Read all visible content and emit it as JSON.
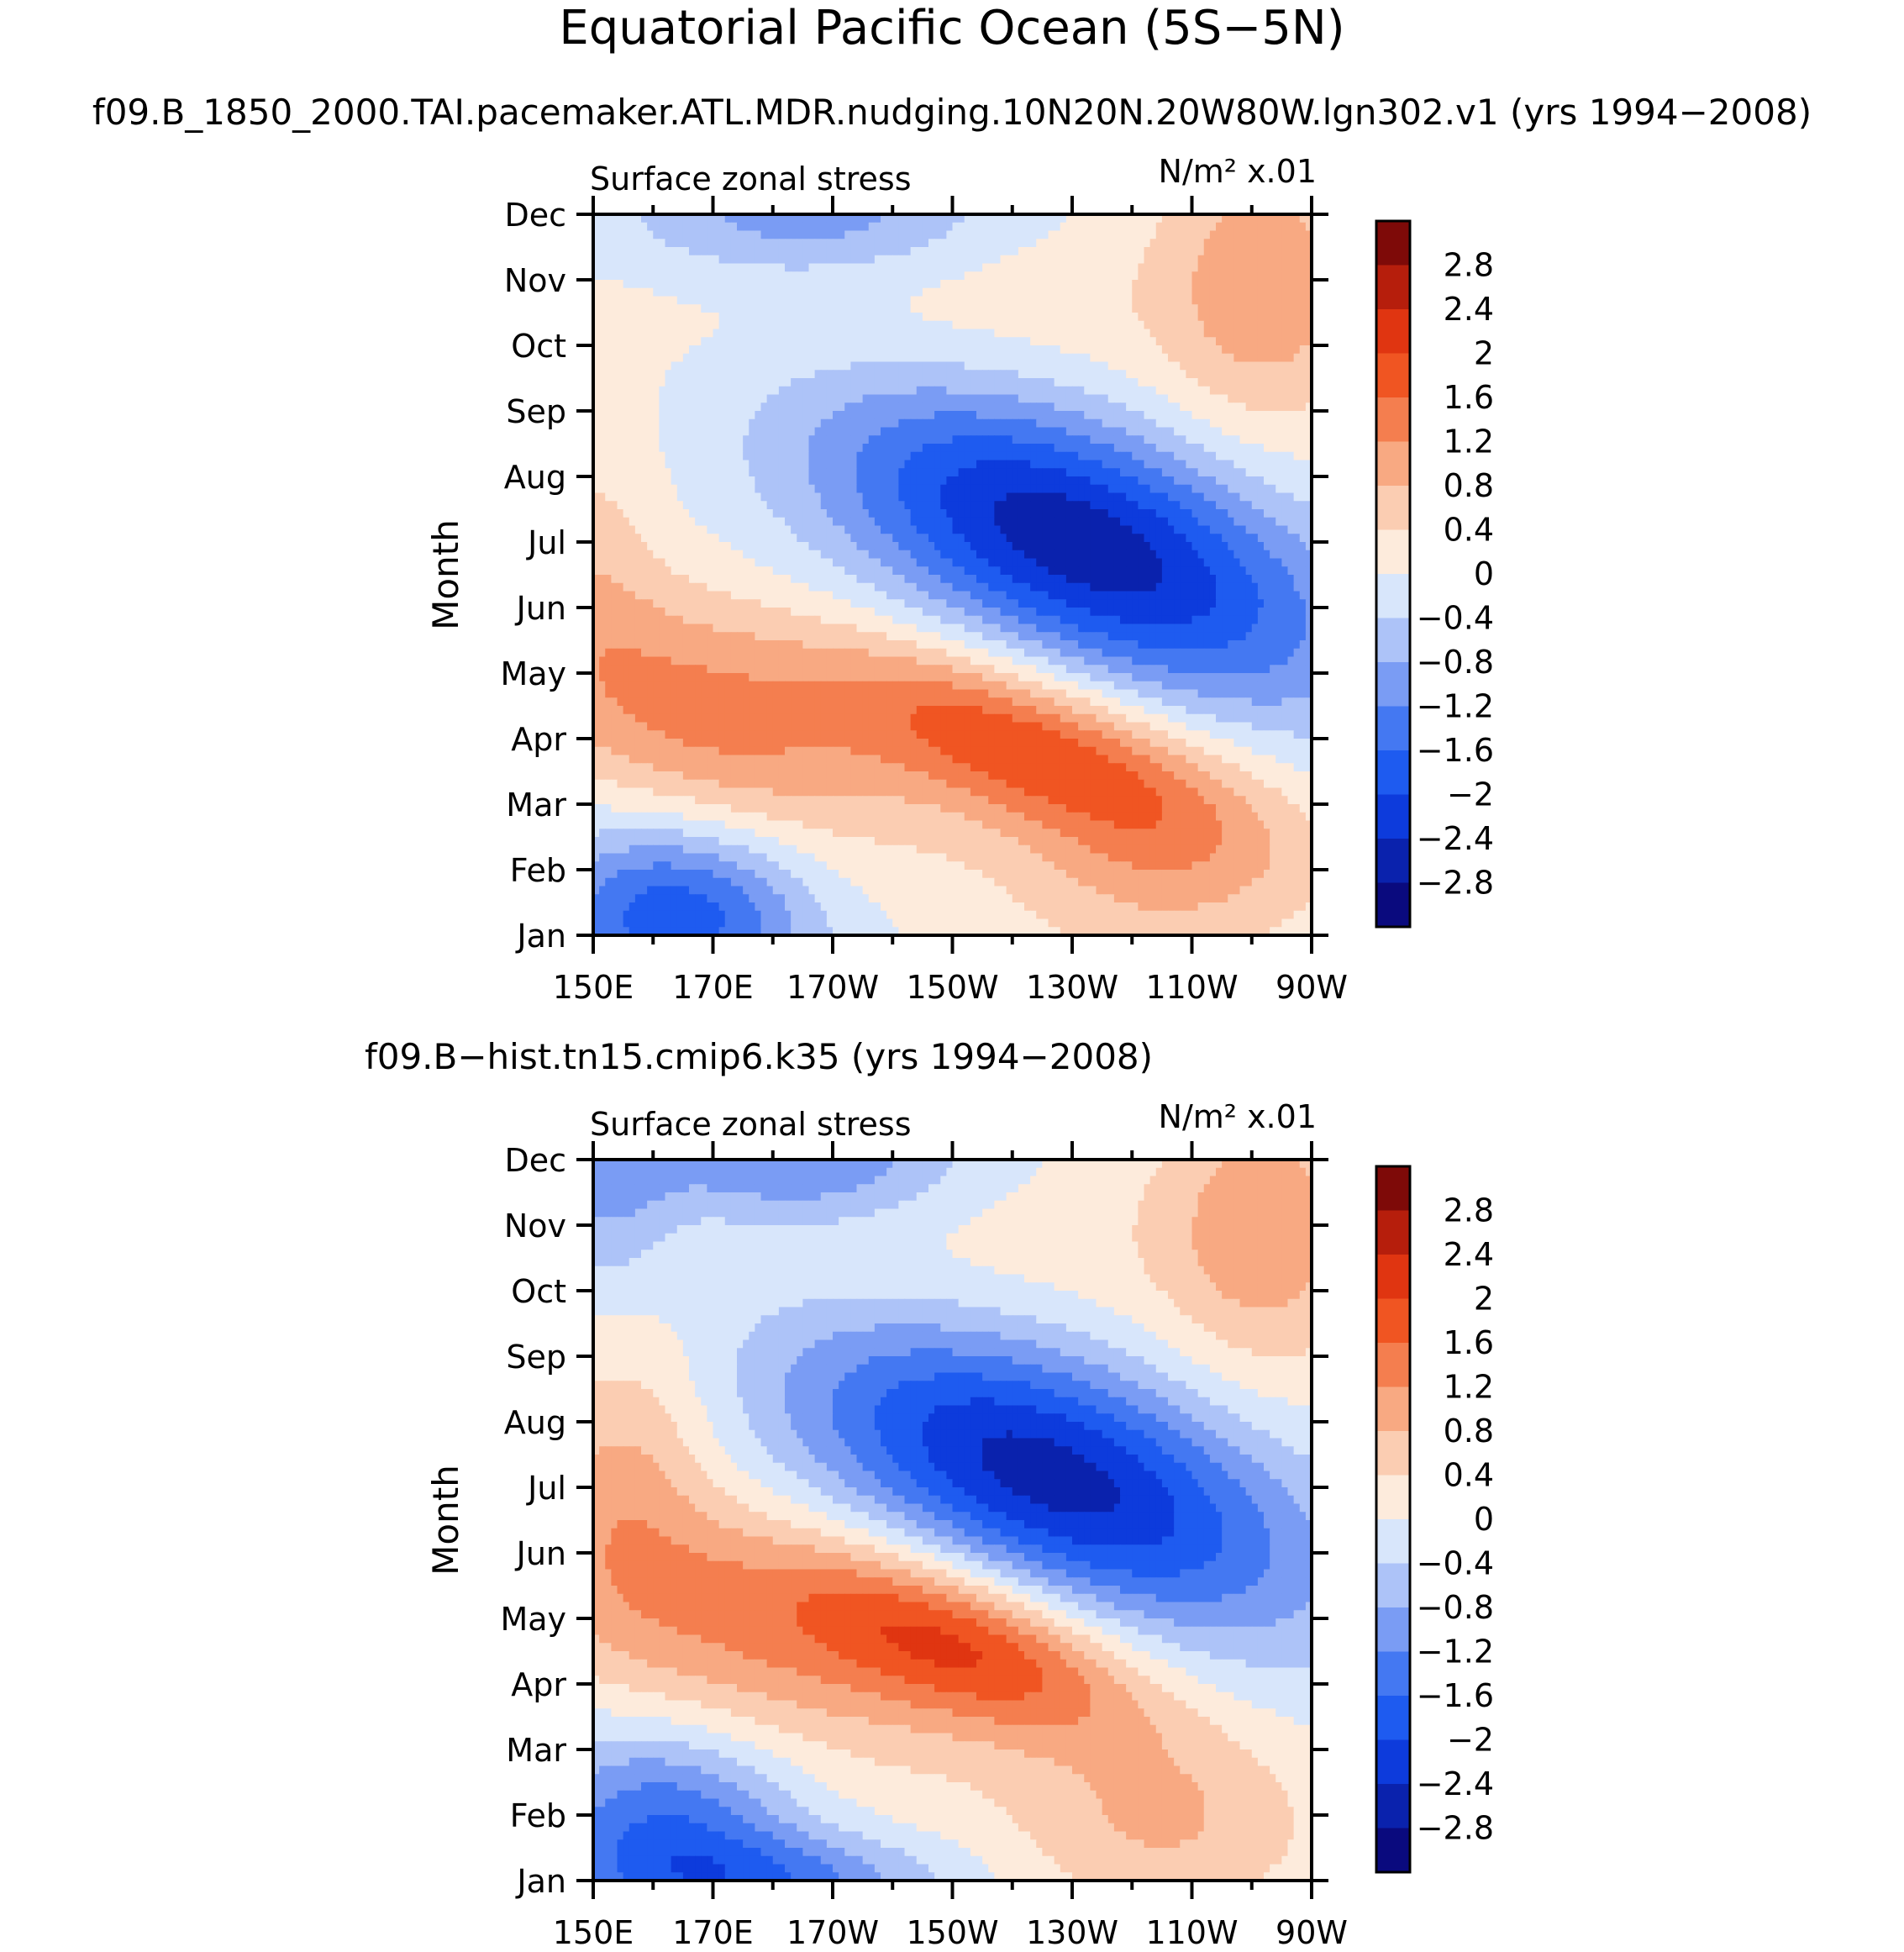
{
  "figure": {
    "title": "Equatorial Pacific Ocean (5S−5N)"
  },
  "colorbar": {
    "colors": [
      "#0a0a7e",
      "#0a22ad",
      "#0d3bdc",
      "#1e5bf0",
      "#4478f2",
      "#7a9cf4",
      "#adc3f8",
      "#d8e6fb",
      "#fdebdc",
      "#fbcdb2",
      "#f8a982",
      "#f47e4f",
      "#f05522",
      "#e03511",
      "#b61e0c",
      "#7e0a08"
    ],
    "labels": [
      "2.8",
      "2.4",
      "2",
      "1.6",
      "1.2",
      "0.8",
      "0.4",
      "0",
      "−0.4",
      "−0.8",
      "−1.2",
      "−1.6",
      "−2",
      "−2.4",
      "−2.8"
    ]
  },
  "chart_data": [
    {
      "type": "heatmap",
      "title": "f09.B_1850_2000.TAI.pacemaker.ATL.MDR.nudging.10N20N.20W80W.lgn302.v1 (yrs 1994−2008)",
      "left_label": "Surface zonal stress",
      "right_label": "N/m² x.01",
      "xlabel": "",
      "ylabel": "Month",
      "x_ticks": [
        "150E",
        "170E",
        "170W",
        "150W",
        "130W",
        "110W",
        "90W"
      ],
      "x_values": [
        150,
        170,
        190,
        210,
        230,
        250,
        270
      ],
      "xlim": [
        150,
        270
      ],
      "y_ticks": [
        "Jan",
        "Feb",
        "Mar",
        "Apr",
        "May",
        "Jun",
        "Jul",
        "Aug",
        "Sep",
        "Oct",
        "Nov",
        "Dec"
      ],
      "ylim": [
        1,
        12
      ],
      "contour_levels": [
        -2.8,
        -2.4,
        -2,
        -1.6,
        -1.2,
        -0.8,
        -0.4,
        0,
        0.4,
        0.8,
        1.2,
        1.6,
        2,
        2.4,
        2.8
      ],
      "features": [
        {
          "lon": 231,
          "month": 7.0,
          "value": -2.7,
          "slon": 30,
          "smon": 1.35,
          "tilt": -0.032
        },
        {
          "lon": 167,
          "month": 4.3,
          "value": 1.3,
          "slon": 24,
          "smon": 1.25,
          "tilt": -0.032
        },
        {
          "lon": 222,
          "month": 3.9,
          "value": 1.9,
          "slon": 24,
          "smon": 0.85,
          "tilt": -0.028
        },
        {
          "lon": 164,
          "month": 1.3,
          "value": -1.9,
          "slon": 16,
          "smon": 1.0,
          "tilt": 0
        },
        {
          "lon": 245,
          "month": 2.0,
          "value": 0.8,
          "slon": 18,
          "smon": 1.1,
          "tilt": 0
        },
        {
          "lon": 186,
          "month": 12.0,
          "value": -1.1,
          "slon": 22,
          "smon": 0.7,
          "tilt": 0
        },
        {
          "lon": 262,
          "month": 11.0,
          "value": 1.0,
          "slon": 12,
          "smon": 1.6,
          "tilt": 0
        },
        {
          "lon": 205,
          "month": 10.5,
          "value": 0.35,
          "slon": 45,
          "smon": 1.2,
          "tilt": 0
        },
        {
          "lon": 150,
          "month": 7.0,
          "value": 0.4,
          "slon": 8,
          "smon": 1.5,
          "tilt": 0
        }
      ]
    },
    {
      "type": "heatmap",
      "title": "f09.B−hist.tn15.cmip6.k35 (yrs 1994−2008)",
      "left_label": "Surface zonal stress",
      "right_label": "N/m² x.01",
      "xlabel": "",
      "ylabel": "Month",
      "x_ticks": [
        "150E",
        "170E",
        "170W",
        "150W",
        "130W",
        "110W",
        "90W"
      ],
      "x_values": [
        150,
        170,
        190,
        210,
        230,
        250,
        270
      ],
      "xlim": [
        150,
        270
      ],
      "y_ticks": [
        "Jan",
        "Feb",
        "Mar",
        "Apr",
        "May",
        "Jun",
        "Jul",
        "Aug",
        "Sep",
        "Oct",
        "Nov",
        "Dec"
      ],
      "ylim": [
        1,
        12
      ],
      "contour_levels": [
        -2.8,
        -2.4,
        -2,
        -1.6,
        -1.2,
        -0.8,
        -0.4,
        0,
        0.4,
        0.8,
        1.2,
        1.6,
        2,
        2.4,
        2.8
      ],
      "features": [
        {
          "lon": 226,
          "month": 7.2,
          "value": -2.6,
          "slon": 30,
          "smon": 1.35,
          "tilt": -0.03
        },
        {
          "lon": 170,
          "month": 4.8,
          "value": 1.1,
          "slon": 26,
          "smon": 1.3,
          "tilt": -0.03
        },
        {
          "lon": 212,
          "month": 4.6,
          "value": 2.0,
          "slon": 22,
          "smon": 0.85,
          "tilt": -0.028
        },
        {
          "lon": 162,
          "month": 1.8,
          "value": -1.6,
          "slon": 16,
          "smon": 1.1,
          "tilt": 0
        },
        {
          "lon": 182,
          "month": 1.0,
          "value": -1.1,
          "slon": 20,
          "smon": 0.5,
          "tilt": 0
        },
        {
          "lon": 245,
          "month": 1.8,
          "value": 0.8,
          "slon": 18,
          "smon": 1.0,
          "tilt": 0
        },
        {
          "lon": 184,
          "month": 12.0,
          "value": -1.3,
          "slon": 20,
          "smon": 0.7,
          "tilt": 0
        },
        {
          "lon": 262,
          "month": 11.0,
          "value": 1.0,
          "slon": 12,
          "smon": 1.6,
          "tilt": 0
        },
        {
          "lon": 210,
          "month": 10.6,
          "value": 0.3,
          "slon": 45,
          "smon": 1.2,
          "tilt": 0
        },
        {
          "lon": 152,
          "month": 11.5,
          "value": -0.8,
          "slon": 8,
          "smon": 1.2,
          "tilt": 0
        },
        {
          "lon": 156,
          "month": 7.5,
          "value": 0.7,
          "slon": 10,
          "smon": 1.5,
          "tilt": 0
        }
      ]
    }
  ]
}
